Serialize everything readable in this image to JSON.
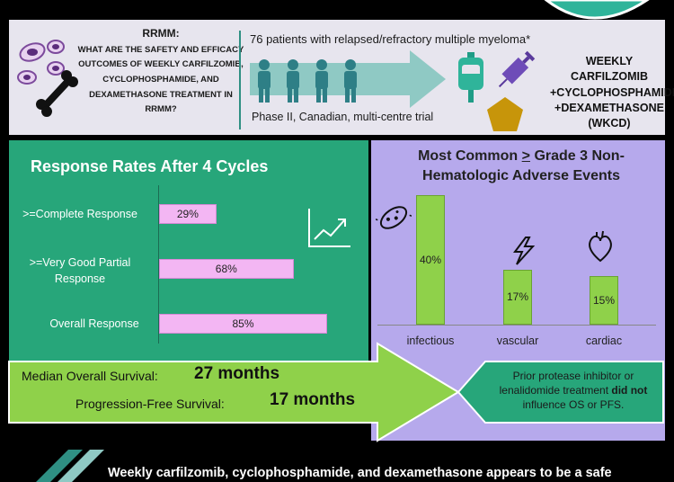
{
  "header": {
    "topic": "RRMM:",
    "question": "What are the safety and efficacy outcomes of weekly carfilzomib, cyclophosphamide, and dexamethasone treatment in RRMM?",
    "patients": "76 patients with relapsed/refractory multiple myeloma*",
    "design": "Phase II, Canadian, multi-centre trial",
    "regimen_lines": [
      "WEEKLY",
      "CARFILZOMIB",
      "+CYCLOPHOSPHAMIDE",
      "+DEXAMETHASONE",
      "(WKCD)"
    ]
  },
  "colors": {
    "green_panel": "#27a67a",
    "purple_panel": "#b6a9ec",
    "response_bar": "#f3b6f3",
    "ae_bar": "#8fd14a",
    "arrow_green": "#8fd14a"
  },
  "chart_data": [
    {
      "type": "bar",
      "orientation": "horizontal",
      "title": "Response Rates After 4 Cycles",
      "categories": [
        ">=Complete Response",
        ">=Very Good Partial Response",
        "Overall Response"
      ],
      "values": [
        29,
        68,
        85
      ],
      "value_labels": [
        "29%",
        "68%",
        "85%"
      ],
      "xlim": [
        0,
        100
      ]
    },
    {
      "type": "bar",
      "title": "Most Common > Grade 3 Non-Hematologic Adverse Events",
      "categories": [
        "infectious",
        "vascular",
        "cardiac"
      ],
      "values": [
        40,
        17,
        15
      ],
      "value_labels": [
        "40%",
        "17%",
        "15%"
      ],
      "ylim": [
        0,
        45
      ]
    }
  ],
  "survival": {
    "os_label": "Median Overall Survival:",
    "os_value": "27 months",
    "pfs_label": "Progression-Free Survival:",
    "pfs_value": "17 months",
    "note_pre": "Prior protease inhibitor or lenalidomide treatment ",
    "note_bold": "did not",
    "note_post": " influence OS or PFS."
  },
  "conclusion": "Weekly carfilzomib, cyclophosphamide, and dexamethasone appears to be a safe",
  "icons": [
    "cells-icon",
    "bone-icon",
    "people-arrow-icon",
    "iv-bag-icon",
    "syringe-icon",
    "pill-icon",
    "trend-chart-icon",
    "bacteria-icon",
    "lightning-icon",
    "heart-icon",
    "logo-circle-icon",
    "banner-corner-icon"
  ]
}
